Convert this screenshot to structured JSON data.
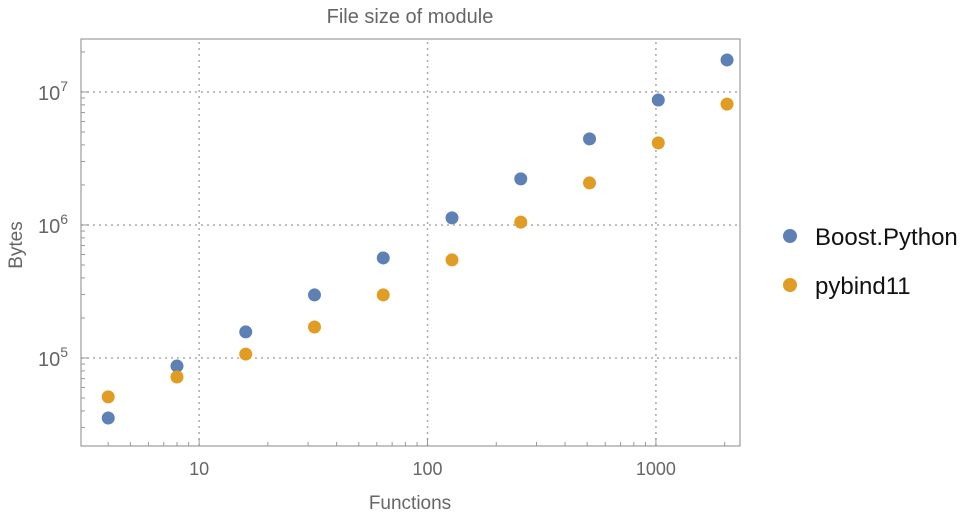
{
  "chart_data": {
    "type": "scatter",
    "title": "File size of module",
    "xlabel": "Functions",
    "ylabel": "Bytes",
    "xscale": "log",
    "yscale": "log",
    "xlim": [
      3.04,
      2334
    ],
    "ylim": [
      21800,
      25000000
    ],
    "grid": true,
    "legend_position": "right",
    "x_ticks": [
      {
        "v": 10,
        "label": "10"
      },
      {
        "v": 100,
        "label": "100"
      },
      {
        "v": 1000,
        "label": "1000"
      }
    ],
    "y_ticks": [
      {
        "v": 100000,
        "base": "10",
        "exp": "5"
      },
      {
        "v": 1000000,
        "base": "10",
        "exp": "6"
      },
      {
        "v": 10000000,
        "base": "10",
        "exp": "7"
      }
    ],
    "x": [
      4,
      8,
      16,
      32,
      64,
      128,
      256,
      512,
      1024,
      2048
    ],
    "series": [
      {
        "name": "Boost.Python",
        "color": "#5e81b5",
        "values": [
          35400,
          87000,
          157000,
          298000,
          565000,
          1130000,
          2220000,
          4440000,
          8700000,
          17400000
        ]
      },
      {
        "name": "pybind11",
        "color": "#e19c24",
        "values": [
          51000,
          72000,
          107000,
          171000,
          298000,
          546000,
          1050000,
          2070000,
          4140000,
          8100000
        ]
      }
    ]
  }
}
